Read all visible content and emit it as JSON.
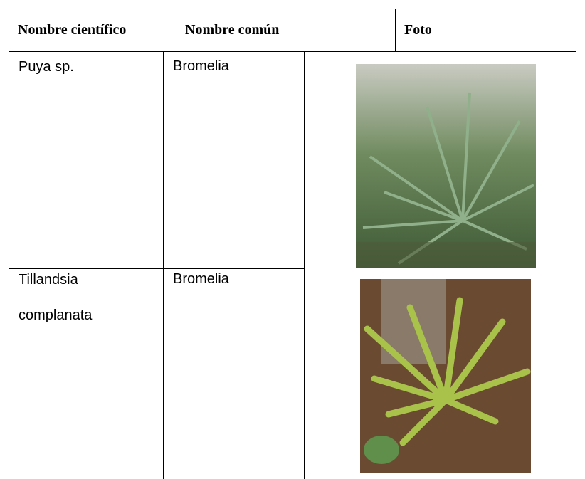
{
  "table": {
    "header": [
      "Nombre científico",
      "Nombre común",
      "Foto"
    ],
    "rows": [
      {
        "scientific": [
          "Puya sp."
        ],
        "common": "Bromelia"
      },
      {
        "scientific": [
          "Tillandsia",
          "complanata"
        ],
        "common": "Bromelia"
      }
    ]
  }
}
